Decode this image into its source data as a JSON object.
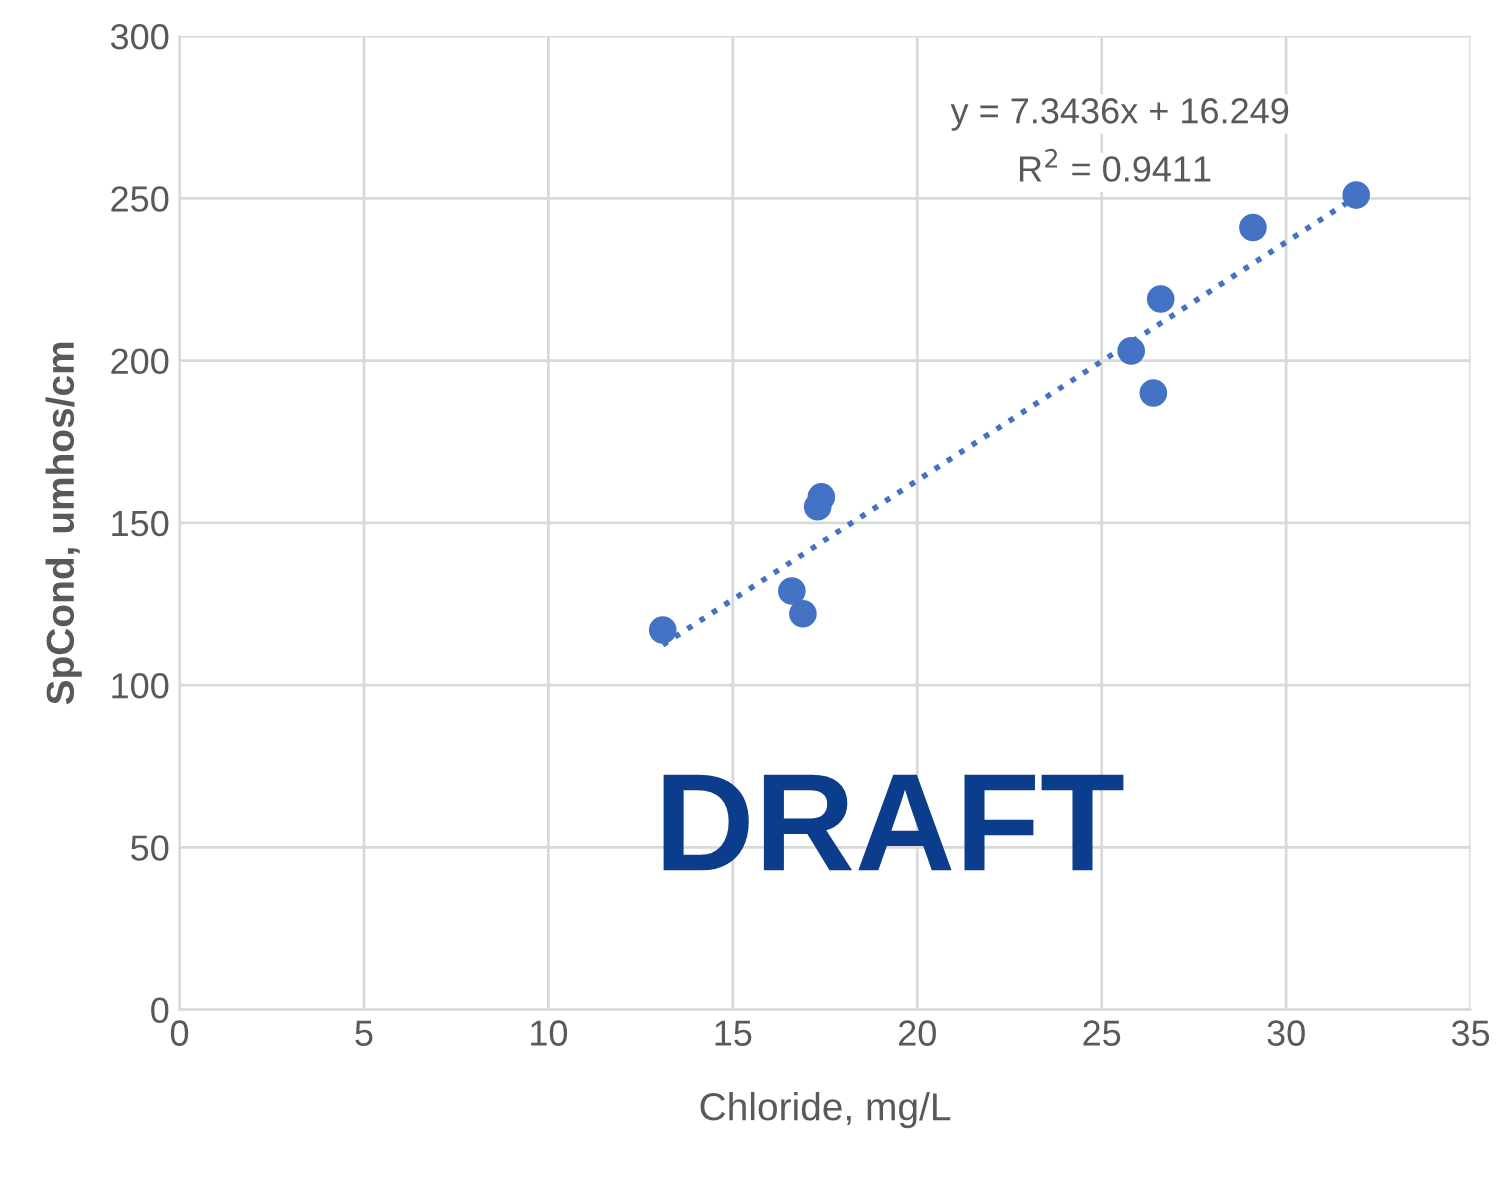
{
  "chart_data": {
    "type": "scatter",
    "xlabel": "Chloride, mg/L",
    "ylabel": "SpCond, umhos/cm",
    "xlim": [
      0,
      35
    ],
    "xticks": [
      0,
      5,
      10,
      15,
      20,
      25,
      30,
      35
    ],
    "ylim": [
      0,
      300
    ],
    "yticks": [
      0,
      50,
      100,
      150,
      200,
      250,
      300
    ],
    "grid": true,
    "series": [
      {
        "color": "#4472c4",
        "marker": "circle",
        "x": [
          13.1,
          16.6,
          16.9,
          17.3,
          17.4,
          25.8,
          26.4,
          26.6,
          29.1,
          31.9
        ],
        "values": [
          117,
          129,
          122,
          155,
          158,
          203,
          190,
          219,
          241,
          251
        ]
      },
      {
        "type": "line",
        "marker": "none",
        "color": "#4472c4",
        "line_style": "dotted",
        "x": [
          13.1,
          32
        ],
        "values": [
          112.4,
          251.2
        ]
      }
    ],
    "annotations": [
      "y = 7.3436x + 16.249",
      "R$^{2}$ = 0.9411",
      "DRAFT"
    ]
  }
}
